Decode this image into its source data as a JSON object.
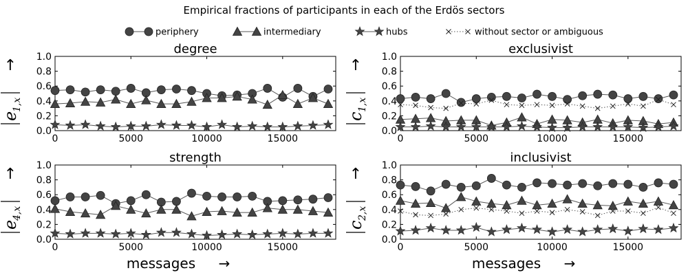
{
  "figure_title": "Empirical fractions of participants in each of the Erdös sectors",
  "legend": [
    {
      "label": "periphery",
      "marker": "circle",
      "line": "solid"
    },
    {
      "label": "intermediary",
      "marker": "triangle",
      "line": "solid"
    },
    {
      "label": "hubs",
      "marker": "star",
      "line": "solid"
    },
    {
      "label": "without sector or ambiguous",
      "marker": "x",
      "line": "dotted"
    }
  ],
  "arrow_glyph": "→",
  "up_arrow_glyph": "↑",
  "colors": {
    "marker": "#444444",
    "line": "#555555",
    "axis": "#000000"
  },
  "chart_data": [
    {
      "type": "line",
      "title": "degree",
      "xlabel": "messages",
      "ylabel": "|e1,x|",
      "ylabel_main": "e",
      "ylabel_sub": "1,x",
      "xlim": [
        0,
        18500
      ],
      "ylim": [
        0.0,
        1.0
      ],
      "xticks": [
        "0",
        "5000",
        "10000",
        "15000"
      ],
      "yticks": [
        "0.0",
        "0.2",
        "0.4",
        "0.6",
        "0.8",
        "1.0"
      ],
      "x": [
        0,
        1000,
        2000,
        3000,
        4000,
        5000,
        6000,
        7000,
        8000,
        9000,
        10000,
        11000,
        12000,
        13000,
        14000,
        15000,
        16000,
        17000,
        18000
      ],
      "series": [
        {
          "name": "periphery",
          "values": [
            0.54,
            0.55,
            0.52,
            0.55,
            0.53,
            0.57,
            0.51,
            0.55,
            0.56,
            0.54,
            0.5,
            0.47,
            0.48,
            0.5,
            0.57,
            0.45,
            0.57,
            0.46,
            0.56
          ]
        },
        {
          "name": "intermediary",
          "values": [
            0.36,
            0.37,
            0.39,
            0.38,
            0.42,
            0.36,
            0.41,
            0.36,
            0.36,
            0.39,
            0.44,
            0.44,
            0.46,
            0.42,
            0.35,
            0.48,
            0.36,
            0.44,
            0.36
          ]
        },
        {
          "name": "hubs",
          "values": [
            0.08,
            0.07,
            0.08,
            0.06,
            0.05,
            0.06,
            0.06,
            0.08,
            0.07,
            0.07,
            0.05,
            0.08,
            0.05,
            0.06,
            0.05,
            0.05,
            0.06,
            0.07,
            0.08
          ]
        }
      ]
    },
    {
      "type": "line",
      "title": "exclusivist",
      "xlabel": "messages",
      "ylabel": "|c1,x|",
      "ylabel_main": "c",
      "ylabel_sub": "1,x",
      "xlim": [
        0,
        18500
      ],
      "ylim": [
        0.0,
        1.0
      ],
      "xticks": [
        "0",
        "5000",
        "10000",
        "15000"
      ],
      "yticks": [
        "0.0",
        "0.2",
        "0.4",
        "0.6",
        "0.8",
        "1.0"
      ],
      "x": [
        0,
        1000,
        2000,
        3000,
        4000,
        5000,
        6000,
        7000,
        8000,
        9000,
        10000,
        11000,
        12000,
        13000,
        14000,
        15000,
        16000,
        17000,
        18000
      ],
      "series": [
        {
          "name": "periphery",
          "values": [
            0.43,
            0.45,
            0.43,
            0.5,
            0.38,
            0.43,
            0.45,
            0.46,
            0.44,
            0.49,
            0.46,
            0.42,
            0.47,
            0.49,
            0.48,
            0.43,
            0.46,
            0.43,
            0.48
          ]
        },
        {
          "name": "intermediary",
          "values": [
            0.15,
            0.16,
            0.17,
            0.13,
            0.14,
            0.14,
            0.07,
            0.11,
            0.18,
            0.09,
            0.15,
            0.14,
            0.11,
            0.15,
            0.1,
            0.14,
            0.13,
            0.09,
            0.11
          ]
        },
        {
          "name": "hubs",
          "values": [
            0.05,
            0.05,
            0.06,
            0.05,
            0.05,
            0.05,
            0.05,
            0.05,
            0.06,
            0.05,
            0.04,
            0.04,
            0.05,
            0.05,
            0.05,
            0.05,
            0.04,
            0.05,
            0.06
          ]
        },
        {
          "name": "without sector or ambiguous",
          "values": [
            0.35,
            0.34,
            0.31,
            0.3,
            0.37,
            0.36,
            0.41,
            0.35,
            0.34,
            0.35,
            0.34,
            0.36,
            0.33,
            0.3,
            0.33,
            0.36,
            0.33,
            0.42,
            0.35
          ]
        }
      ]
    },
    {
      "type": "line",
      "title": "strength",
      "xlabel": "messages",
      "ylabel": "|e4,x|",
      "ylabel_main": "e",
      "ylabel_sub": "4,x",
      "xlim": [
        0,
        18500
      ],
      "ylim": [
        0.0,
        1.0
      ],
      "xticks": [
        "0",
        "5000",
        "10000",
        "15000"
      ],
      "yticks": [
        "0.0",
        "0.2",
        "0.4",
        "0.6",
        "0.8",
        "1.0"
      ],
      "x": [
        0,
        1000,
        2000,
        3000,
        4000,
        5000,
        6000,
        7000,
        8000,
        9000,
        10000,
        11000,
        12000,
        13000,
        14000,
        15000,
        16000,
        17000,
        18000
      ],
      "series": [
        {
          "name": "periphery",
          "values": [
            0.52,
            0.57,
            0.57,
            0.59,
            0.48,
            0.52,
            0.6,
            0.5,
            0.51,
            0.62,
            0.58,
            0.57,
            0.57,
            0.58,
            0.51,
            0.52,
            0.53,
            0.54,
            0.56
          ]
        },
        {
          "name": "intermediary",
          "values": [
            0.41,
            0.37,
            0.35,
            0.33,
            0.45,
            0.4,
            0.35,
            0.4,
            0.4,
            0.31,
            0.37,
            0.38,
            0.36,
            0.36,
            0.42,
            0.4,
            0.4,
            0.38,
            0.36
          ]
        },
        {
          "name": "hubs",
          "values": [
            0.08,
            0.07,
            0.08,
            0.08,
            0.07,
            0.08,
            0.06,
            0.09,
            0.09,
            0.07,
            0.05,
            0.06,
            0.07,
            0.06,
            0.07,
            0.08,
            0.07,
            0.08,
            0.08
          ]
        }
      ]
    },
    {
      "type": "line",
      "title": "inclusivist",
      "xlabel": "messages",
      "ylabel": "|c2,x|",
      "ylabel_main": "c",
      "ylabel_sub": "2,x",
      "xlim": [
        0,
        18500
      ],
      "ylim": [
        0.0,
        1.0
      ],
      "xticks": [
        "0",
        "5000",
        "10000",
        "15000"
      ],
      "yticks": [
        "0.0",
        "0.2",
        "0.4",
        "0.6",
        "0.8",
        "1.0"
      ],
      "x": [
        0,
        1000,
        2000,
        3000,
        4000,
        5000,
        6000,
        7000,
        8000,
        9000,
        10000,
        11000,
        12000,
        13000,
        14000,
        15000,
        16000,
        17000,
        18000
      ],
      "series": [
        {
          "name": "periphery",
          "values": [
            0.73,
            0.71,
            0.65,
            0.74,
            0.7,
            0.72,
            0.82,
            0.73,
            0.7,
            0.76,
            0.75,
            0.73,
            0.75,
            0.72,
            0.75,
            0.74,
            0.7,
            0.76,
            0.74
          ]
        },
        {
          "name": "intermediary",
          "values": [
            0.52,
            0.48,
            0.49,
            0.42,
            0.57,
            0.51,
            0.48,
            0.46,
            0.52,
            0.46,
            0.48,
            0.54,
            0.48,
            0.46,
            0.45,
            0.51,
            0.48,
            0.51,
            0.46
          ]
        },
        {
          "name": "hubs",
          "values": [
            0.11,
            0.12,
            0.15,
            0.12,
            0.12,
            0.16,
            0.1,
            0.13,
            0.15,
            0.13,
            0.1,
            0.13,
            0.1,
            0.13,
            0.14,
            0.11,
            0.14,
            0.13,
            0.15
          ]
        },
        {
          "name": "without sector or ambiguous",
          "values": [
            0.38,
            0.33,
            0.32,
            0.34,
            0.4,
            0.42,
            0.4,
            0.38,
            0.35,
            0.38,
            0.36,
            0.4,
            0.37,
            0.32,
            0.38,
            0.38,
            0.35,
            0.43,
            0.35
          ]
        }
      ]
    }
  ]
}
